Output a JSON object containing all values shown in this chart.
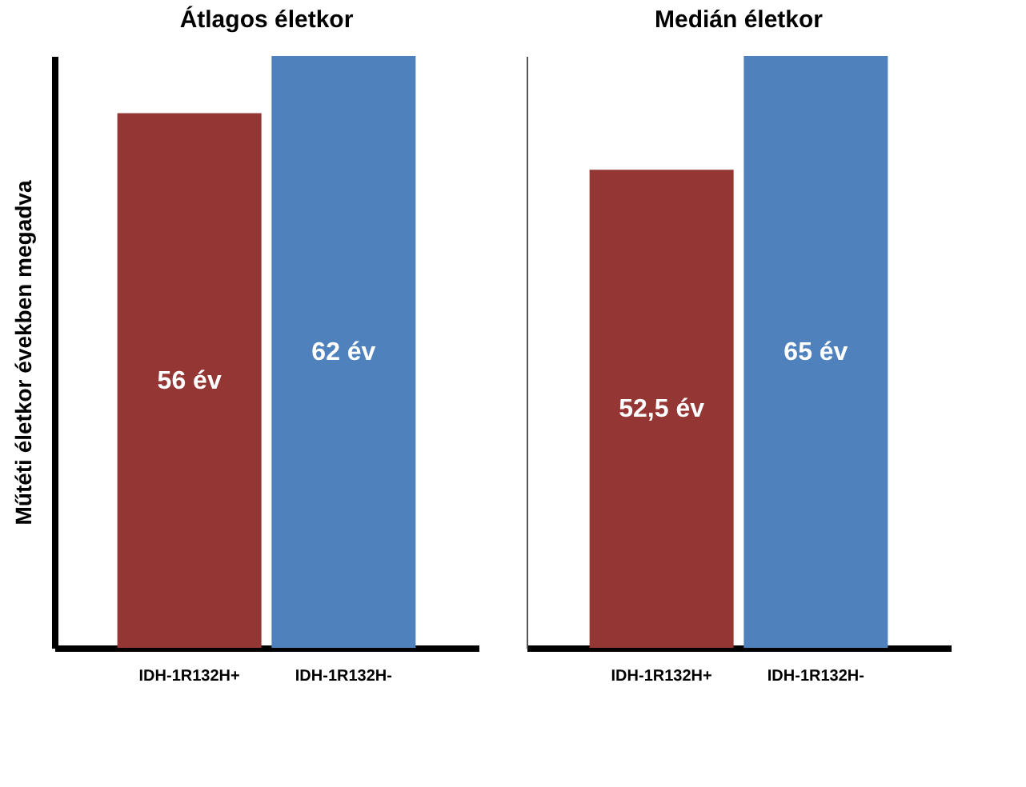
{
  "chart_data": [
    {
      "type": "bar",
      "title": "Átlagos életkor",
      "ylabel": "Műtéti életkor években megadva",
      "categories": [
        "IDH-1R132H+",
        "IDH-1R132H-"
      ],
      "values": [
        56,
        62
      ],
      "colors": [
        "#943634",
        "#4f81bd"
      ],
      "value_labels": [
        "56 év",
        "62 év"
      ]
    },
    {
      "type": "bar",
      "title": "Medián életkor",
      "categories": [
        "IDH-1R132H+",
        "IDH-1R132H-"
      ],
      "values": [
        52.5,
        65
      ],
      "colors": [
        "#943634",
        "#4f81bd"
      ],
      "value_labels": [
        "52,5 év",
        "65 év"
      ]
    }
  ]
}
